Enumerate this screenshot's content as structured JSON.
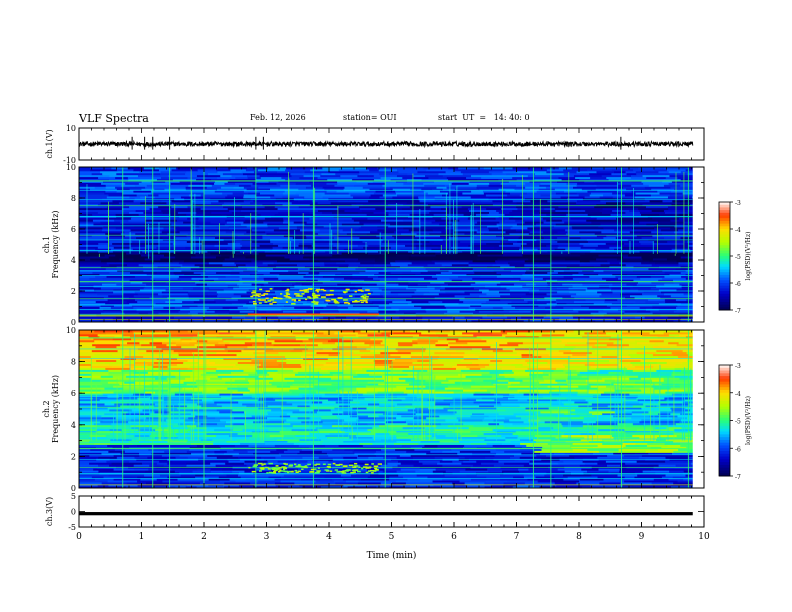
{
  "header": {
    "title": "VLF Spectra",
    "date": "Feb. 12, 2026",
    "station": "station= OUI",
    "start": "start  UT  =   14: 40: 0"
  },
  "colorbar": {
    "label": "log(PSD)(V²/Hz)",
    "ticks": [
      "-3",
      "-4",
      "-5",
      "-6",
      "-7"
    ],
    "colors": [
      "#ffffff",
      "#ff0000",
      "#ffff00",
      "#00ff00",
      "#00ffff",
      "#0000ff",
      "#000060"
    ]
  },
  "chart_data": [
    {
      "id": "ch1-waveform",
      "type": "line",
      "ylabel": "ch.1(V)",
      "ylim": [
        -10,
        10
      ],
      "yticks": [
        "10",
        "-10"
      ],
      "description_series": [
        {
          "name": "ch.1 amplitude",
          "mean": 0.0,
          "approx_range": [
            -1.5,
            1.5
          ],
          "spike_minutes": [
            0.85,
            1.05,
            1.18,
            1.45,
            2.83,
            2.95,
            8.67
          ]
        }
      ]
    },
    {
      "id": "ch1-spectrogram",
      "type": "heatmap",
      "ylabel_line1": "ch.1",
      "ylabel_line2": "Frequency (kHz)",
      "ylim": [
        0,
        10
      ],
      "yticks": [
        "10",
        "8",
        "6",
        "4",
        "2",
        "0"
      ],
      "xlim": [
        0,
        10
      ],
      "level_range": [
        -7,
        -3
      ],
      "features": [
        {
          "name": "broadband background",
          "freq_khz": [
            0,
            10
          ],
          "log_psd": -6.3
        },
        {
          "name": "dark band",
          "freq_khz": [
            3.9,
            4.4
          ],
          "log_psd": -6.9
        },
        {
          "name": "narrowband line",
          "freq_khz": 4.6,
          "log_psd": -5.0
        },
        {
          "name": "narrowband line",
          "freq_khz": 3.3,
          "log_psd": -5.2
        },
        {
          "name": "narrowband line",
          "freq_khz": 2.6,
          "log_psd": -5.3
        },
        {
          "name": "narrowband line",
          "freq_khz": 2.0,
          "log_psd": -5.4
        },
        {
          "name": "narrowband line",
          "freq_khz": 0.8,
          "log_psd": -5.2
        },
        {
          "name": "low-frequency line",
          "freq_khz": 0.15,
          "log_psd": -4.2
        },
        {
          "name": "burst emission",
          "freq_khz": [
            1.2,
            2.2
          ],
          "minutes": [
            2.7,
            4.8
          ],
          "log_psd": -4.3
        }
      ]
    },
    {
      "id": "ch2-spectrogram",
      "type": "heatmap",
      "ylabel_line1": "ch.2",
      "ylabel_line2": "Frequency (kHz)",
      "ylim": [
        0,
        10
      ],
      "yticks": [
        "10",
        "8",
        "6",
        "4",
        "2",
        "0"
      ],
      "xlim": [
        0,
        10
      ],
      "level_range": [
        -7,
        -3
      ],
      "features": [
        {
          "name": "high-frequency hiss",
          "freq_khz": [
            7,
            10
          ],
          "log_psd": -4.0
        },
        {
          "name": "mid band",
          "freq_khz": [
            4,
            7
          ],
          "log_psd": -5.2
        },
        {
          "name": "enhanced band",
          "freq_khz": [
            2.8,
            3.6
          ],
          "log_psd": -5.0
        },
        {
          "name": "step-change emission",
          "freq_khz": [
            2.2,
            3.4
          ],
          "minutes": [
            7.25,
            9.8
          ],
          "log_psd": -4.6
        },
        {
          "name": "step-change emission",
          "freq_khz": [
            4.2,
            5.0
          ],
          "minutes": [
            7.25,
            8.6
          ],
          "log_psd": -5.0
        },
        {
          "name": "burst emission",
          "freq_khz": [
            1.0,
            1.6
          ],
          "minutes": [
            2.7,
            4.8
          ],
          "log_psd": -4.6
        }
      ]
    },
    {
      "id": "ch3-waveform",
      "type": "line",
      "ylabel": "ch.3(V)",
      "ylim": [
        -5,
        5
      ],
      "yticks": [
        "5",
        "0",
        "-5"
      ],
      "description_series": [
        {
          "name": "ch.3 amplitude",
          "mean": -0.7,
          "approx_range": [
            -0.9,
            -0.5
          ]
        }
      ]
    }
  ],
  "x_axis": {
    "label": "Time (min)",
    "xlim": [
      0,
      10
    ],
    "tick_labels": [
      "0",
      "1",
      "2",
      "3",
      "4",
      "5",
      "6",
      "7",
      "8",
      "9",
      "10"
    ]
  }
}
